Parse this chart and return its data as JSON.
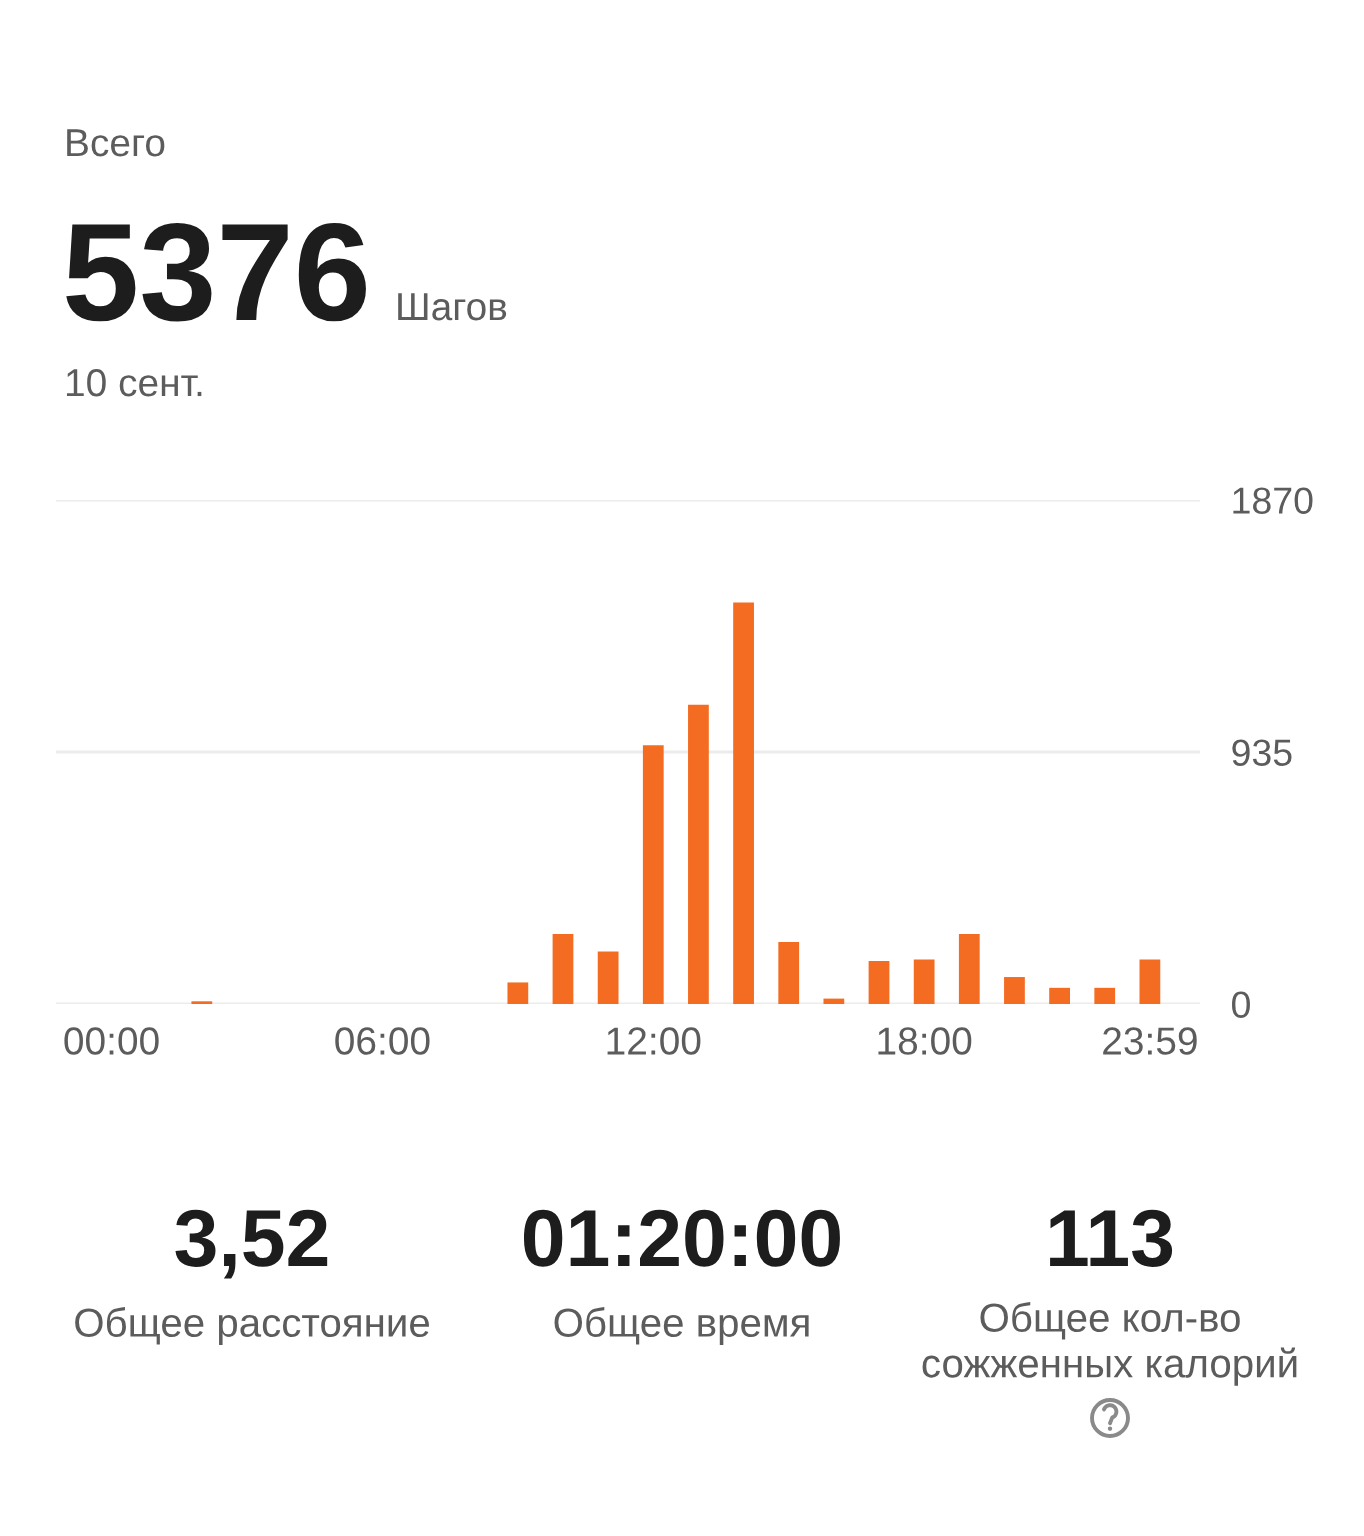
{
  "chart_data": {
    "type": "bar",
    "title": "Всего",
    "subtitle": "10 сент.",
    "annotations": [
      "5376",
      "Шагов",
      "3,52",
      "Общее расстояние",
      "01:20:00",
      "Общее время",
      "113",
      "Общее кол-во\nсожженных калорий"
    ],
    "categories": [
      "00:00",
      null,
      null,
      null,
      null,
      null,
      "06:00",
      null,
      null,
      null,
      null,
      null,
      "12:00",
      null,
      null,
      null,
      null,
      null,
      "18:00",
      null,
      null,
      null,
      null,
      "23:59"
    ],
    "values": [
      0,
      0,
      10,
      0,
      0,
      0,
      0,
      0,
      0,
      80,
      260,
      195,
      960,
      1110,
      1490,
      230,
      20,
      160,
      165,
      260,
      100,
      60,
      60,
      165
    ],
    "color": "#f36c21",
    "ylim": [
      0,
      1870
    ],
    "yticks": [
      0,
      935,
      1870
    ],
    "grid": "y"
  }
}
